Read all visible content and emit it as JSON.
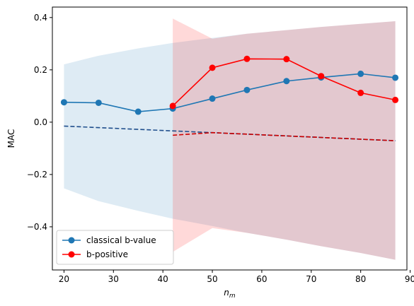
{
  "chart_data": {
    "type": "line",
    "xlabel": "n",
    "xlabel_subscript": "m",
    "ylabel": "MAC",
    "xlim": [
      17.65,
      89.35
    ],
    "ylim": [
      -0.565,
      0.44
    ],
    "x_ticks": [
      20,
      30,
      40,
      50,
      60,
      70,
      80,
      90
    ],
    "y_ticks": [
      -0.4,
      -0.2,
      0.0,
      0.2,
      0.4
    ],
    "y_tick_labels": [
      "−0.4",
      "−0.2",
      "0.0",
      "0.2",
      "0.4"
    ],
    "grid": false,
    "legend_position": "lower-left",
    "series": [
      {
        "name": "classical b-value",
        "color": "#1f77b4",
        "x": [
          20,
          27,
          35,
          42,
          50,
          57,
          65,
          72,
          80,
          87
        ],
        "y": [
          0.076,
          0.074,
          0.04,
          0.052,
          0.09,
          0.123,
          0.157,
          0.171,
          0.185,
          0.17
        ]
      },
      {
        "name": "b-positive",
        "color": "#ff0000",
        "x": [
          42,
          50,
          57,
          65,
          72,
          80,
          87
        ],
        "y": [
          0.062,
          0.208,
          0.242,
          0.241,
          0.176,
          0.112,
          0.085
        ]
      }
    ],
    "trend_lines": [
      {
        "color": "#1f4e8c",
        "x": [
          20,
          87
        ],
        "y": [
          -0.015,
          -0.071
        ]
      },
      {
        "color": "#cc0000",
        "x": [
          42,
          50,
          87
        ],
        "y": [
          -0.05,
          -0.04,
          -0.071
        ]
      }
    ],
    "bands": [
      {
        "color": "#1f77b4",
        "opacity": 0.15,
        "x": [
          20,
          27,
          35,
          42,
          50,
          57,
          65,
          72,
          80,
          87
        ],
        "upper": [
          0.221,
          0.254,
          0.282,
          0.303,
          0.322,
          0.338,
          0.352,
          0.364,
          0.376,
          0.386
        ],
        "lower": [
          -0.253,
          -0.302,
          -0.339,
          -0.369,
          -0.397,
          -0.423,
          -0.449,
          -0.474,
          -0.5,
          -0.526
        ]
      },
      {
        "color": "#ff0000",
        "opacity": 0.15,
        "x": [
          42,
          50,
          57,
          65,
          72,
          80,
          87
        ],
        "upper": [
          0.396,
          0.319,
          0.338,
          0.352,
          0.364,
          0.376,
          0.386
        ],
        "lower": [
          -0.496,
          -0.405,
          -0.423,
          -0.449,
          -0.474,
          -0.5,
          -0.526
        ]
      }
    ]
  }
}
